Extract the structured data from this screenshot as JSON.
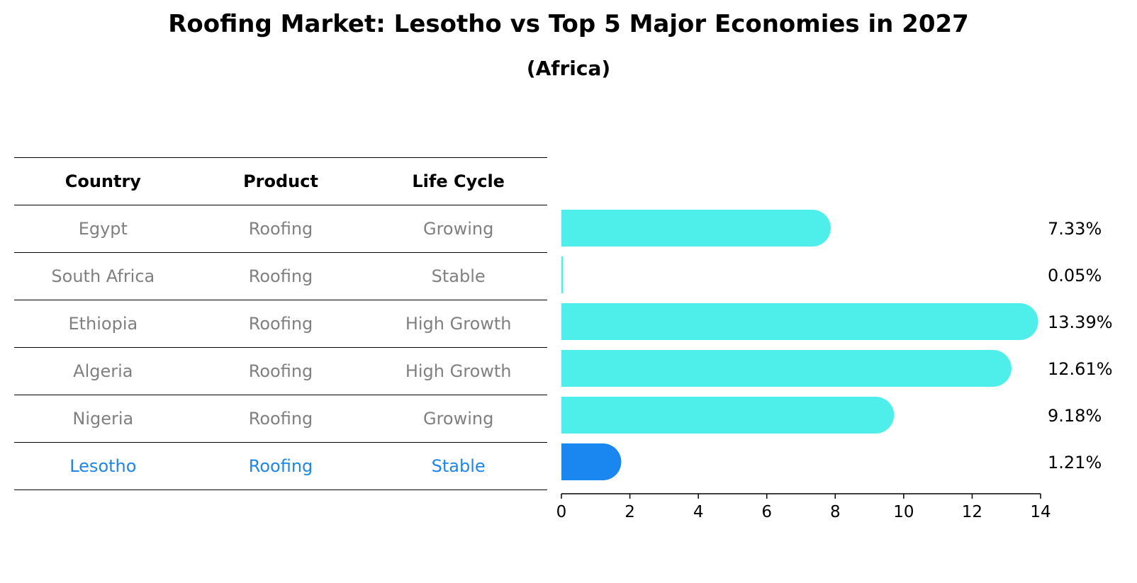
{
  "title": "Roofing Market: Lesotho vs Top 5 Major Economies in 2027",
  "subtitle": "(Africa)",
  "table": {
    "headers": [
      "Country",
      "Product",
      "Life Cycle"
    ],
    "rows": [
      [
        "Egypt",
        "Roofing",
        "Growing"
      ],
      [
        "South Africa",
        "Roofing",
        "Stable"
      ],
      [
        "Ethiopia",
        "Roofing",
        "High Growth"
      ],
      [
        "Algeria",
        "Roofing",
        "High Growth"
      ],
      [
        "Nigeria",
        "Roofing",
        "Growing"
      ],
      [
        "Lesotho",
        "Roofing",
        "Stable"
      ]
    ]
  },
  "colors": {
    "bar": "#4eeeea",
    "highlight": "#1a86f0",
    "row_text": "#808080",
    "highlight_text": "#1a86f0"
  },
  "chart_data": {
    "type": "bar",
    "orientation": "horizontal",
    "title": "Roofing Market: Lesotho vs Top 5 Major Economies in 2027",
    "subtitle": "(Africa)",
    "categories": [
      "Egypt",
      "South Africa",
      "Ethiopia",
      "Algeria",
      "Nigeria",
      "Lesotho"
    ],
    "values": [
      7.33,
      0.05,
      13.39,
      12.61,
      9.18,
      1.21
    ],
    "labels": [
      "7.33%",
      "0.05%",
      "13.39%",
      "12.61%",
      "9.18%",
      "1.21%"
    ],
    "highlight": "Lesotho",
    "xlim": [
      0,
      14
    ],
    "xticks": [
      0,
      2,
      4,
      6,
      8,
      10,
      12,
      14
    ],
    "xlabel": "",
    "ylabel": "",
    "grid": false
  }
}
